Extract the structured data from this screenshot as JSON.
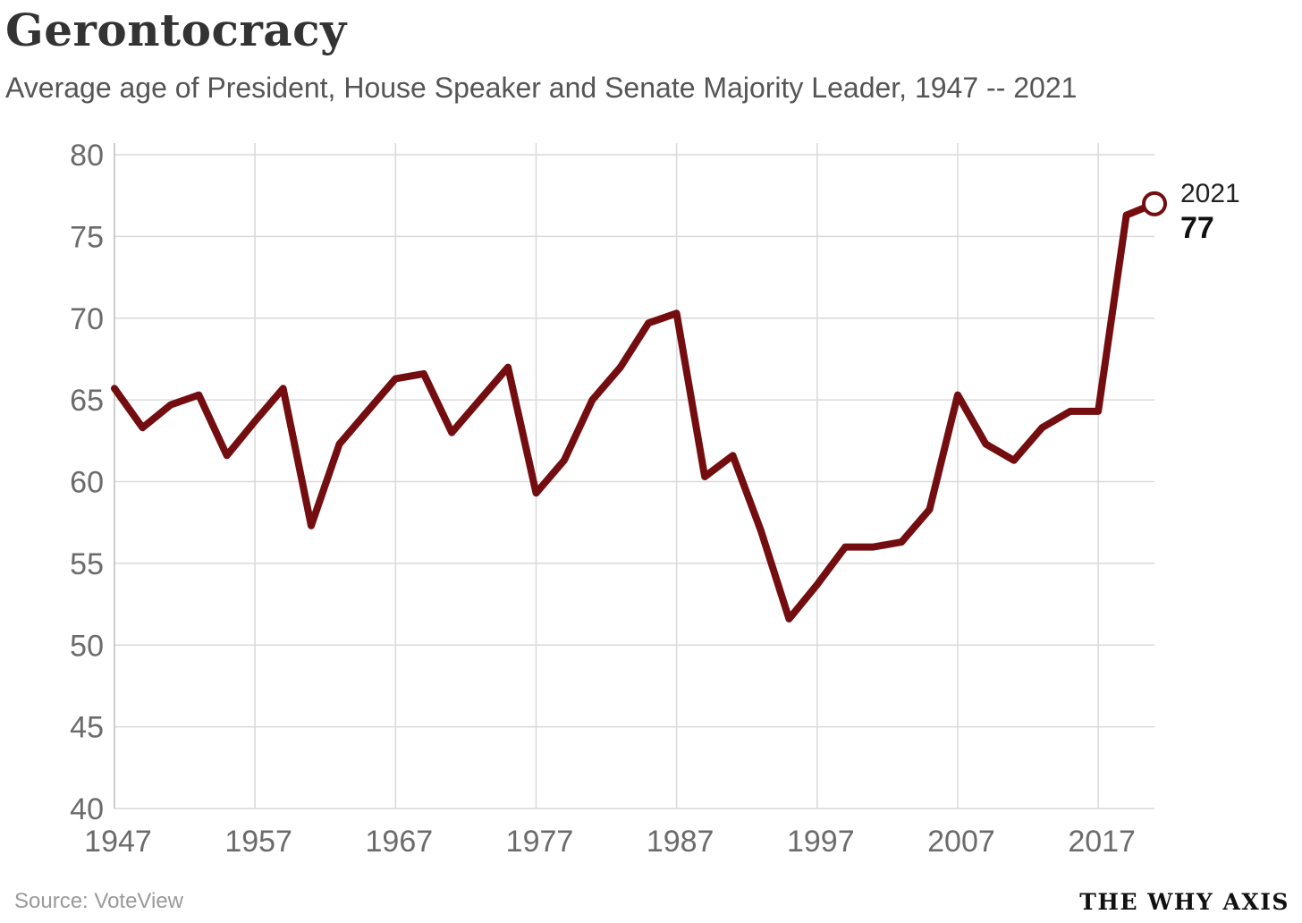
{
  "chart_data": {
    "type": "line",
    "title": "Gerontocracy",
    "subtitle": "Average age of President, House Speaker and Senate Majority Leader, 1947 -- 2021",
    "xlabel": "",
    "ylabel": "",
    "xlim": [
      1947,
      2021
    ],
    "ylim": [
      40,
      80
    ],
    "xticks": [
      1947,
      1957,
      1967,
      1977,
      1987,
      1997,
      2007,
      2017
    ],
    "yticks": [
      40,
      45,
      50,
      55,
      60,
      65,
      70,
      75,
      80
    ],
    "grid": true,
    "series": [
      {
        "name": "Average age",
        "color": "#730d10",
        "x": [
          1947,
          1949,
          1951,
          1953,
          1955,
          1957,
          1959,
          1961,
          1963,
          1965,
          1967,
          1969,
          1971,
          1973,
          1975,
          1977,
          1979,
          1981,
          1983,
          1985,
          1987,
          1989,
          1991,
          1993,
          1995,
          1997,
          1999,
          2001,
          2003,
          2005,
          2007,
          2009,
          2011,
          2013,
          2015,
          2017,
          2019,
          2021
        ],
        "values": [
          65.7,
          63.3,
          64.7,
          65.3,
          61.6,
          63.7,
          65.7,
          57.3,
          62.3,
          64.3,
          66.3,
          66.6,
          63.0,
          65.0,
          67.0,
          59.3,
          61.3,
          65.0,
          67.0,
          69.7,
          70.3,
          60.3,
          61.6,
          57.0,
          51.6,
          53.7,
          56.0,
          56.0,
          56.3,
          58.3,
          65.3,
          62.3,
          61.3,
          63.3,
          64.3,
          64.3,
          76.3,
          77.0
        ]
      }
    ],
    "annotation": {
      "year_label": "2021",
      "value_label": "77"
    }
  },
  "footer": {
    "source": "Source: VoteView",
    "brand": "THE WHY AXIS"
  }
}
